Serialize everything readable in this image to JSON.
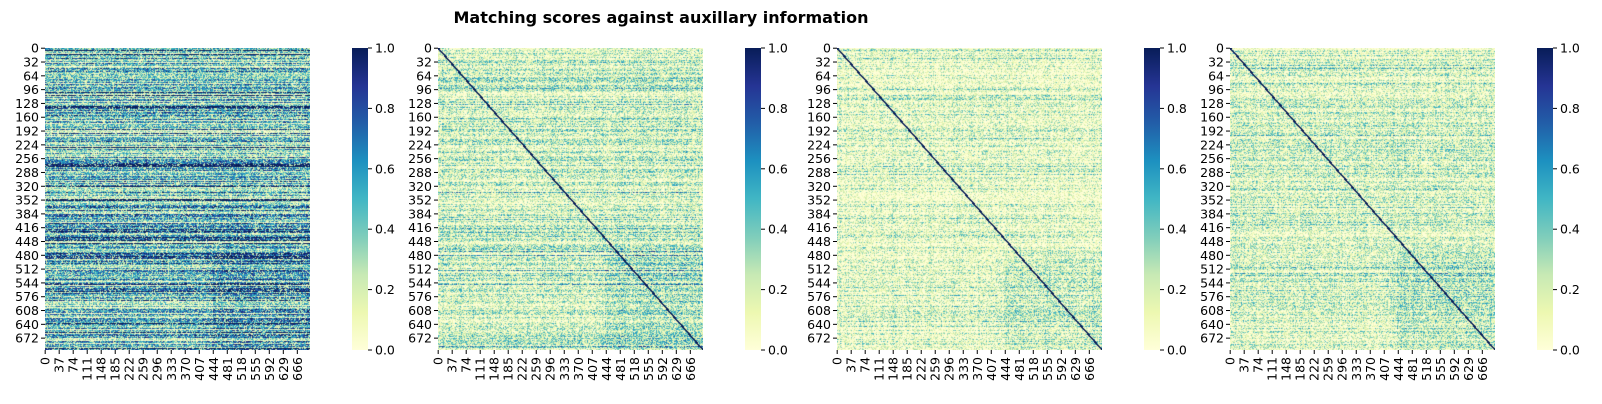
{
  "chart_data": {
    "type": "heatmap",
    "title": "Matching scores against auxillary information",
    "colormap": "YlGnBu",
    "color_stops": [
      "#ffffd9",
      "#edf8b1",
      "#c7e9b4",
      "#7fcdbb",
      "#41b6c4",
      "#1d91c0",
      "#225ea8",
      "#253494",
      "#081d58"
    ],
    "value_range": [
      0,
      1
    ],
    "matrix_size": [
      700,
      700
    ],
    "y_tick_labels": [
      "0",
      "32",
      "64",
      "96",
      "128",
      "160",
      "192",
      "224",
      "256",
      "288",
      "320",
      "352",
      "384",
      "416",
      "448",
      "480",
      "512",
      "544",
      "576",
      "608",
      "640",
      "672"
    ],
    "x_tick_labels": [
      "0",
      "37",
      "74",
      "111",
      "148",
      "185",
      "222",
      "259",
      "296",
      "333",
      "370",
      "407",
      "444",
      "481",
      "518",
      "555",
      "592",
      "629",
      "666"
    ],
    "colorbar_ticks": [
      "0.0",
      "0.2",
      "0.4",
      "0.6",
      "0.8",
      "1.0"
    ],
    "panels": [
      {
        "name": "panel-1",
        "base_level": 0.42,
        "row_variance": 0.38,
        "diagonal": false,
        "block_start_row": 470,
        "block_start_col": 440
      },
      {
        "name": "panel-2",
        "base_level": 0.2,
        "row_variance": 0.18,
        "diagonal": true,
        "block_start_row": 470,
        "block_start_col": 440
      },
      {
        "name": "panel-3",
        "base_level": 0.1,
        "row_variance": 0.13,
        "diagonal": true,
        "block_start_row": 470,
        "block_start_col": 440
      },
      {
        "name": "panel-4",
        "base_level": 0.14,
        "row_variance": 0.15,
        "diagonal": true,
        "block_start_row": 470,
        "block_start_col": 440
      }
    ]
  }
}
